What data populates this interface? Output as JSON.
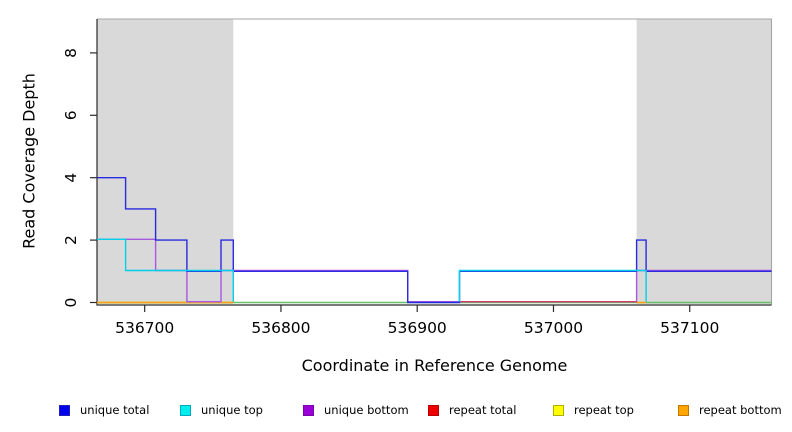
{
  "chart_data": {
    "type": "line",
    "title": "",
    "xlabel": "Coordinate in Reference Genome",
    "ylabel": "Read Coverage Depth",
    "xlim": [
      536665,
      537160
    ],
    "ylim": [
      0,
      9.1
    ],
    "xticks": [
      536700,
      536800,
      536900,
      537000,
      537100
    ],
    "yticks": [
      0,
      2,
      4,
      6,
      8
    ],
    "grid": false,
    "step_style": "step-after",
    "shaded_regions": [
      {
        "x0": 536665,
        "x1": 536765,
        "color": "#d9d9d9"
      },
      {
        "x0": 537061,
        "x1": 537160,
        "color": "#d9d9d9"
      }
    ],
    "series": [
      {
        "name": "zero baseline",
        "color": "#6abf69",
        "in_legend": false,
        "segments": [
          [
            [
              536665,
              0
            ],
            [
              537160,
              0
            ]
          ]
        ]
      },
      {
        "name": "repeat top",
        "color": "#f0e400",
        "in_legend": true,
        "segments": [
          [
            [
              536665,
              0
            ],
            [
              536765,
              0
            ]
          ],
          [
            [
              537061,
              0
            ],
            [
              537068,
              0
            ]
          ]
        ]
      },
      {
        "name": "repeat bottom",
        "color": "#ff9f1a",
        "in_legend": true,
        "segments": [
          [
            [
              536665,
              0
            ],
            [
              536765,
              0
            ]
          ],
          [
            [
              537061,
              0
            ],
            [
              537068,
              0
            ]
          ]
        ]
      },
      {
        "name": "unique bottom",
        "color": "#a758e0",
        "in_legend": true,
        "segments": [
          [
            [
              536665,
              2
            ],
            [
              536708,
              1
            ],
            [
              536731,
              0
            ],
            [
              536756,
              1
            ],
            [
              536893,
              0
            ],
            [
              537061,
              1
            ],
            [
              537160,
              1
            ]
          ]
        ]
      },
      {
        "name": "repeat total",
        "color": "#d23b66",
        "in_legend": true,
        "segments": [
          [
            [
              536931,
              0
            ],
            [
              537061,
              0
            ]
          ]
        ]
      },
      {
        "name": "unique total",
        "color": "#2a2ae0",
        "in_legend": true,
        "segments": [
          [
            [
              536665,
              4
            ],
            [
              536686,
              3
            ],
            [
              536708,
              2
            ],
            [
              536731,
              1
            ],
            [
              536756,
              2
            ],
            [
              536765,
              1
            ],
            [
              536893,
              0
            ],
            [
              536931,
              1
            ],
            [
              537061,
              2
            ],
            [
              537068,
              1
            ],
            [
              537160,
              1
            ]
          ]
        ]
      },
      {
        "name": "unique top",
        "color": "#00d0e8",
        "in_legend": true,
        "segments": [
          [
            [
              536665,
              2
            ],
            [
              536686,
              1
            ],
            [
              536765,
              0
            ]
          ],
          [
            [
              536931,
              0
            ],
            [
              536931,
              1
            ],
            [
              537068,
              0
            ]
          ]
        ]
      }
    ],
    "legend": {
      "position": "bottom",
      "items": [
        {
          "label": "unique total",
          "color": "#0000ee",
          "border": "#2222bb"
        },
        {
          "label": "unique top",
          "color": "#00eeee",
          "border": "#00aabb"
        },
        {
          "label": "unique bottom",
          "color": "#9c00d8",
          "border": "#7a00aa"
        },
        {
          "label": "repeat total",
          "color": "#ee0000",
          "border": "#bb0000"
        },
        {
          "label": "repeat top",
          "color": "#ffff00",
          "border": "#b0b000"
        },
        {
          "label": "repeat bottom",
          "color": "#ffa500",
          "border": "#c07800"
        }
      ]
    }
  }
}
